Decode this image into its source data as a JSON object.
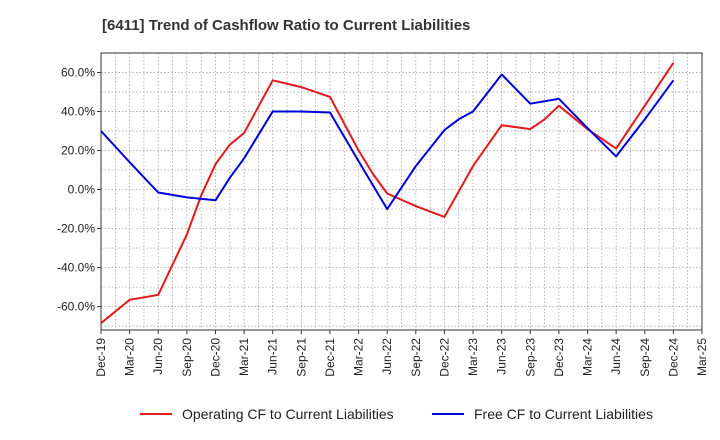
{
  "chart_data": {
    "type": "line",
    "title": "[6411]  Trend of Cashflow Ratio to Current Liabilities",
    "xlabel": "",
    "ylabel": "",
    "ylim": [
      -72,
      70
    ],
    "yticks": [
      -60,
      -40,
      -20,
      0,
      20,
      40,
      60
    ],
    "ytick_labels": [
      "-60.0%",
      "-40.0%",
      "-20.0%",
      "0.0%",
      "20.0%",
      "40.0%",
      "60.0%"
    ],
    "xticks": [
      "Dec-19",
      "Mar-20",
      "Jun-20",
      "Sep-20",
      "Dec-20",
      "Mar-21",
      "Jun-21",
      "Sep-21",
      "Dec-21",
      "Mar-22",
      "Jun-22",
      "Sep-22",
      "Dec-22",
      "Mar-23",
      "Jun-23",
      "Sep-23",
      "Dec-23",
      "Mar-24",
      "Jun-24",
      "Sep-24",
      "Dec-24",
      "Mar-25"
    ],
    "grid": true,
    "legend_position": "bottom",
    "series": [
      {
        "name": "Operating CF to Current Liabilities",
        "color": "#e31a1c",
        "x": [
          0,
          1,
          2,
          3,
          3.5,
          4,
          4.5,
          5,
          6,
          7,
          8,
          9,
          9.5,
          10,
          11,
          12,
          12.5,
          13,
          14,
          15,
          15.5,
          16,
          17,
          18,
          19,
          20
        ],
        "values": [
          -68.5,
          -56.5,
          -54,
          -23,
          -3,
          13,
          23,
          29,
          56,
          52.5,
          47.5,
          20,
          8,
          -2,
          -8.5,
          -14,
          -1,
          12,
          33,
          31,
          36,
          43,
          31,
          21,
          43,
          65
        ]
      },
      {
        "name": "Free CF to Current Liabilities",
        "color": "#0000dd",
        "x": [
          0,
          1,
          2,
          3,
          4,
          4.5,
          5,
          6,
          7,
          8,
          9,
          10,
          10.5,
          11,
          12,
          12.5,
          13,
          14,
          15,
          16,
          17,
          18,
          19,
          20
        ],
        "values": [
          30,
          14,
          -1.5,
          -4,
          -5.5,
          6,
          16,
          40,
          40,
          39.5,
          14.5,
          -10,
          1,
          12,
          30.5,
          36,
          40,
          59,
          44,
          46.5,
          31.5,
          17,
          36,
          56
        ]
      }
    ]
  }
}
